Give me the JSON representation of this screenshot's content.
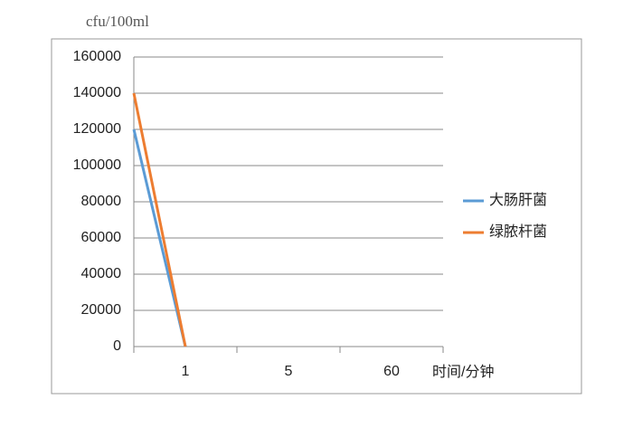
{
  "chart_data": {
    "type": "line",
    "y_label": "cfu/100ml",
    "x_label": "时间/分钟",
    "categories": [
      null,
      "1",
      "5",
      "60"
    ],
    "series": [
      {
        "name": "大肠肝菌",
        "color": "#5b9bd5",
        "values": [
          120000,
          0,
          null,
          null
        ]
      },
      {
        "name": "绿脓杆菌",
        "color": "#ed7d31",
        "values": [
          140000,
          0,
          null,
          null
        ]
      }
    ],
    "ylim": [
      0,
      160000
    ],
    "yticks": [
      0,
      20000,
      40000,
      60000,
      80000,
      100000,
      120000,
      140000,
      160000
    ],
    "grid": true,
    "legend": "right"
  }
}
